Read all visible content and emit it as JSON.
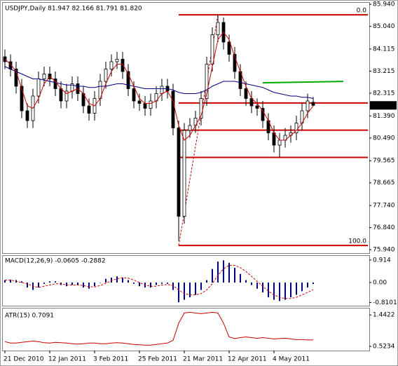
{
  "chart_data": [
    {
      "type": "candlestick",
      "title": "USDJPY,Daily  81.947 82.166 81.791 81.820",
      "categories": [
        "21 Dec 2010",
        null,
        null,
        null,
        null,
        null,
        null,
        null,
        "12 Jan 2011",
        null,
        null,
        null,
        null,
        null,
        null,
        null,
        "3 Feb 2011",
        null,
        null,
        null,
        null,
        null,
        null,
        null,
        "25 Feb 2011",
        null,
        null,
        null,
        null,
        null,
        null,
        null,
        "21 Mar 2011",
        null,
        null,
        null,
        null,
        null,
        null,
        null,
        "12 Apr 2011",
        null,
        null,
        null,
        null,
        null,
        null,
        null,
        "4 May 2011",
        null,
        null,
        null,
        null,
        null,
        null,
        null
      ],
      "open": [
        83.8,
        83.6,
        83.3,
        82.6,
        81.6,
        81.2,
        82.2,
        82.9,
        83.1,
        82.9,
        82.5,
        82.0,
        82.4,
        82.7,
        82.3,
        81.8,
        81.5,
        82.1,
        82.8,
        83.3,
        83.6,
        83.7,
        83.2,
        82.5,
        82.0,
        81.9,
        81.7,
        82.0,
        82.3,
        82.6,
        82.4,
        80.9,
        77.3,
        80.8,
        81.0,
        81.3,
        82.1,
        83.5,
        84.7,
        85.2,
        84.4,
        83.9,
        83.2,
        82.5,
        82.1,
        81.8,
        81.7,
        81.2,
        80.7,
        80.2,
        80.4,
        80.6,
        80.7,
        81.1,
        81.6,
        81.947
      ],
      "high": [
        84.1,
        83.9,
        83.6,
        82.9,
        81.9,
        82.5,
        83.2,
        83.4,
        83.4,
        83.2,
        82.8,
        82.7,
        83.0,
        83.0,
        82.6,
        82.1,
        82.4,
        83.1,
        83.6,
        83.9,
        84.0,
        84.0,
        83.5,
        82.8,
        82.3,
        82.2,
        82.3,
        82.6,
        82.9,
        82.9,
        82.7,
        81.2,
        81.1,
        81.3,
        81.6,
        82.4,
        83.8,
        85.0,
        85.5,
        85.4,
        84.7,
        84.2,
        83.5,
        82.8,
        82.4,
        82.1,
        82.0,
        81.5,
        81.0,
        80.7,
        80.9,
        81.0,
        81.4,
        81.9,
        82.3,
        82.166
      ],
      "low": [
        83.3,
        83.0,
        82.3,
        81.3,
        80.9,
        80.9,
        81.9,
        82.6,
        82.6,
        82.2,
        81.7,
        81.7,
        82.1,
        82.0,
        81.5,
        81.2,
        81.2,
        81.8,
        82.5,
        83.0,
        83.3,
        82.9,
        82.2,
        81.7,
        81.6,
        81.4,
        81.4,
        81.7,
        82.0,
        82.1,
        80.6,
        76.3,
        77.0,
        80.5,
        80.7,
        81.0,
        81.8,
        83.2,
        84.4,
        84.1,
        83.6,
        82.9,
        82.2,
        81.8,
        81.5,
        81.4,
        80.9,
        80.4,
        79.9,
        79.7,
        80.1,
        80.3,
        80.4,
        80.8,
        81.3,
        81.791
      ],
      "close": [
        83.6,
        83.3,
        82.6,
        81.6,
        81.2,
        82.2,
        82.9,
        83.1,
        82.9,
        82.5,
        82.0,
        82.4,
        82.7,
        82.3,
        81.8,
        81.5,
        82.1,
        82.8,
        83.3,
        83.6,
        83.7,
        83.2,
        82.5,
        82.0,
        81.9,
        81.7,
        82.0,
        82.3,
        82.6,
        82.4,
        80.9,
        77.3,
        80.8,
        81.0,
        81.3,
        82.1,
        83.5,
        84.7,
        85.2,
        84.4,
        83.9,
        83.2,
        82.5,
        82.1,
        81.8,
        81.7,
        81.2,
        80.7,
        80.2,
        80.4,
        80.6,
        80.7,
        81.1,
        81.6,
        82.0,
        81.82
      ],
      "ma_fast": [
        83.7,
        83.5,
        83.2,
        82.5,
        81.8,
        81.7,
        82.1,
        82.7,
        83.0,
        82.8,
        82.5,
        82.3,
        82.4,
        82.5,
        82.3,
        81.9,
        81.8,
        82.1,
        82.7,
        83.2,
        83.5,
        83.5,
        83.1,
        82.6,
        82.1,
        81.9,
        81.9,
        82.0,
        82.3,
        82.4,
        82.0,
        81.0,
        80.4,
        80.6,
        81.0,
        81.4,
        82.3,
        83.4,
        84.5,
        84.8,
        84.5,
        83.8,
        83.2,
        82.6,
        82.1,
        81.9,
        81.6,
        81.2,
        80.7,
        80.4,
        80.4,
        80.6,
        80.8,
        81.1,
        81.5,
        81.8
      ],
      "ma_slow": [
        83.4,
        83.3,
        83.2,
        83.1,
        83.0,
        82.9,
        82.9,
        82.85,
        82.8,
        82.75,
        82.7,
        82.65,
        82.65,
        82.6,
        82.6,
        82.55,
        82.55,
        82.6,
        82.6,
        82.65,
        82.7,
        82.7,
        82.65,
        82.6,
        82.55,
        82.5,
        82.5,
        82.5,
        82.5,
        82.5,
        82.45,
        82.35,
        82.3,
        82.3,
        82.3,
        82.35,
        82.45,
        82.6,
        82.7,
        82.8,
        82.8,
        82.8,
        82.75,
        82.7,
        82.65,
        82.6,
        82.55,
        82.45,
        82.35,
        82.3,
        82.25,
        82.2,
        82.2,
        82.15,
        82.15,
        82.1
      ],
      "ma_fast_color": "#cc0000",
      "ma_slow_color": "#000080",
      "up_color": "#ffffff",
      "down_color": "#000000",
      "fibonacci": {
        "high": 85.51,
        "low": 76.11,
        "color": "#cc0000",
        "levels": [
          {
            "value": 0,
            "label": "0.0"
          },
          38.2,
          50,
          61.8,
          {
            "value": 100,
            "label": "100.0"
          }
        ]
      },
      "trend_line": {
        "value": 82.74,
        "color": "#00aa00"
      },
      "last_price": {
        "value": 81.82,
        "label": "81.820"
      },
      "ylim": [
        75.8,
        86.0
      ],
      "yticks": [
        {
          "value": 85.94,
          "label": "85.940"
        },
        {
          "value": 85.04,
          "label": "85.040"
        },
        {
          "value": 84.115,
          "label": "84.115"
        },
        {
          "value": 83.215,
          "label": "83.215"
        },
        {
          "value": 82.315,
          "label": "82.315"
        },
        {
          "value": 81.39,
          "label": "81.390"
        },
        {
          "value": 80.49,
          "label": "80.490"
        },
        {
          "value": 79.565,
          "label": "79.565"
        },
        {
          "value": 78.665,
          "label": "78.665"
        },
        {
          "value": 77.74,
          "label": "77.740"
        },
        {
          "value": 76.84,
          "label": "76.840"
        },
        {
          "value": 75.94,
          "label": "75.940"
        }
      ]
    },
    {
      "type": "macd",
      "title": "MACD(12,26,9) -0.0605 -0.2882",
      "values": [
        0.1,
        0.12,
        0.1,
        0.05,
        -0.2,
        -0.3,
        -0.2,
        -0.05,
        0.05,
        0.05,
        -0.1,
        -0.15,
        -0.1,
        -0.1,
        -0.2,
        -0.25,
        -0.15,
        0.0,
        0.15,
        0.2,
        0.25,
        0.2,
        0.1,
        -0.05,
        -0.15,
        -0.2,
        -0.2,
        -0.1,
        -0.05,
        -0.05,
        -0.3,
        -0.8,
        -0.7,
        -0.6,
        -0.5,
        -0.3,
        0.1,
        0.55,
        0.85,
        0.9,
        0.8,
        0.6,
        0.35,
        0.1,
        -0.1,
        -0.25,
        -0.4,
        -0.6,
        -0.7,
        -0.75,
        -0.7,
        -0.6,
        -0.5,
        -0.35,
        -0.2,
        -0.0605
      ],
      "signal": [
        0.1,
        0.1,
        0.05,
        0.0,
        -0.05,
        -0.15,
        -0.2,
        -0.15,
        -0.1,
        -0.05,
        -0.05,
        -0.1,
        -0.1,
        -0.1,
        -0.12,
        -0.17,
        -0.18,
        -0.12,
        -0.03,
        0.08,
        0.15,
        0.2,
        0.18,
        0.1,
        0.0,
        -0.1,
        -0.15,
        -0.15,
        -0.1,
        -0.08,
        -0.12,
        -0.3,
        -0.45,
        -0.5,
        -0.5,
        -0.45,
        -0.3,
        -0.05,
        0.3,
        0.55,
        0.7,
        0.7,
        0.6,
        0.45,
        0.25,
        0.05,
        -0.15,
        -0.35,
        -0.5,
        -0.6,
        -0.65,
        -0.65,
        -0.6,
        -0.5,
        -0.4,
        -0.2882
      ],
      "color": "#000080",
      "signal_color": "#cc0000",
      "ylim": [
        -0.94,
        1.08
      ],
      "yticks": [
        0.914,
        {
          "value": 0,
          "label": "0.00"
        },
        -0.8101
      ]
    },
    {
      "type": "line",
      "title": "ATR(15) 0.7091",
      "values": [
        0.66,
        0.62,
        0.62,
        0.64,
        0.66,
        0.68,
        0.66,
        0.63,
        0.62,
        0.64,
        0.63,
        0.62,
        0.6,
        0.59,
        0.6,
        0.62,
        0.62,
        0.6,
        0.6,
        0.62,
        0.63,
        0.62,
        0.6,
        0.58,
        0.57,
        0.56,
        0.56,
        0.58,
        0.6,
        0.62,
        0.7,
        1.2,
        1.5,
        1.52,
        1.5,
        1.48,
        1.5,
        1.52,
        1.5,
        1.2,
        0.8,
        0.75,
        0.78,
        0.8,
        0.78,
        0.76,
        0.78,
        0.76,
        0.74,
        0.75,
        0.76,
        0.74,
        0.72,
        0.72,
        0.71,
        0.7091
      ],
      "color": "#cc0000",
      "ylim": [
        0.4,
        1.63
      ],
      "yticks": [
        1.4422,
        0.5234
      ]
    }
  ]
}
